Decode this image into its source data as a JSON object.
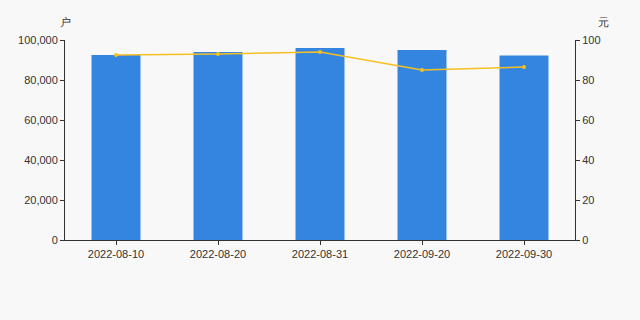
{
  "chart_data": {
    "type": "bar",
    "categories": [
      "2022-08-10",
      "2022-08-20",
      "2022-08-31",
      "2022-09-20",
      "2022-09-30"
    ],
    "ylabel": "户",
    "y2label": "元",
    "series": [
      {
        "type": "bar",
        "color": "#3385e0",
        "values": [
          92500,
          94000,
          96000,
          95000,
          92300
        ]
      },
      {
        "type": "line",
        "axis": "y2",
        "color": "#f5c023",
        "marker": "circle",
        "line_style": "solid",
        "values": [
          92.5,
          93,
          94,
          85,
          86.5
        ]
      }
    ],
    "ylim": [
      0,
      100000
    ],
    "yticks": [
      0,
      {
        "value": 20000,
        "label": "20,000"
      },
      {
        "value": 40000,
        "label": "40,000"
      },
      {
        "value": 60000,
        "label": "60,000"
      },
      {
        "value": 80000,
        "label": "80,000"
      },
      {
        "value": 100000,
        "label": "100,000"
      }
    ],
    "y2lim": [
      0,
      100
    ],
    "y2ticks": [
      0,
      20,
      40,
      60,
      80,
      100
    ],
    "grid": false
  }
}
